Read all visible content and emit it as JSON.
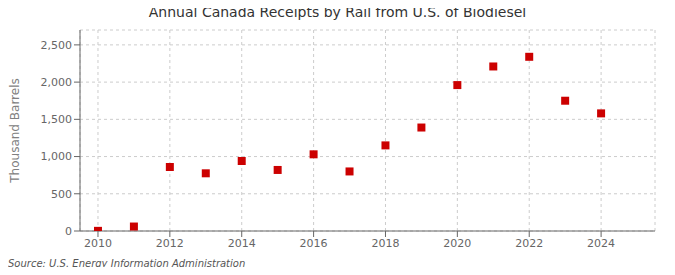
{
  "chart_data": {
    "type": "scatter",
    "title": "Annual Canada Receipts by Rail from U.S. of Biodiesel",
    "y_label": "Thousand Barrels",
    "annotations": [
      "Source: U.S. Energy Information Administration"
    ],
    "x": [
      2010,
      2011,
      2012,
      2013,
      2014,
      2015,
      2016,
      2017,
      2018,
      2019,
      2020,
      2021,
      2022,
      2023,
      2024
    ],
    "values": [
      2,
      60,
      860,
      775,
      940,
      820,
      1030,
      800,
      1150,
      1390,
      1960,
      2210,
      2340,
      1750,
      1580
    ],
    "xlim": [
      2009.5,
      2025.5
    ],
    "ylim": [
      0,
      2700
    ],
    "xticks": [
      2010,
      2012,
      2014,
      2016,
      2018,
      2020,
      2022,
      2024
    ],
    "yticks": [
      0,
      500,
      {
        "value": 1000,
        "label": "1,000"
      },
      {
        "value": 1500,
        "label": "1,500"
      },
      {
        "value": 2000,
        "label": "2,000"
      },
      {
        "value": 2500,
        "label": "2,500"
      }
    ],
    "color": "#cc0000",
    "marker": "square",
    "grid": true
  }
}
